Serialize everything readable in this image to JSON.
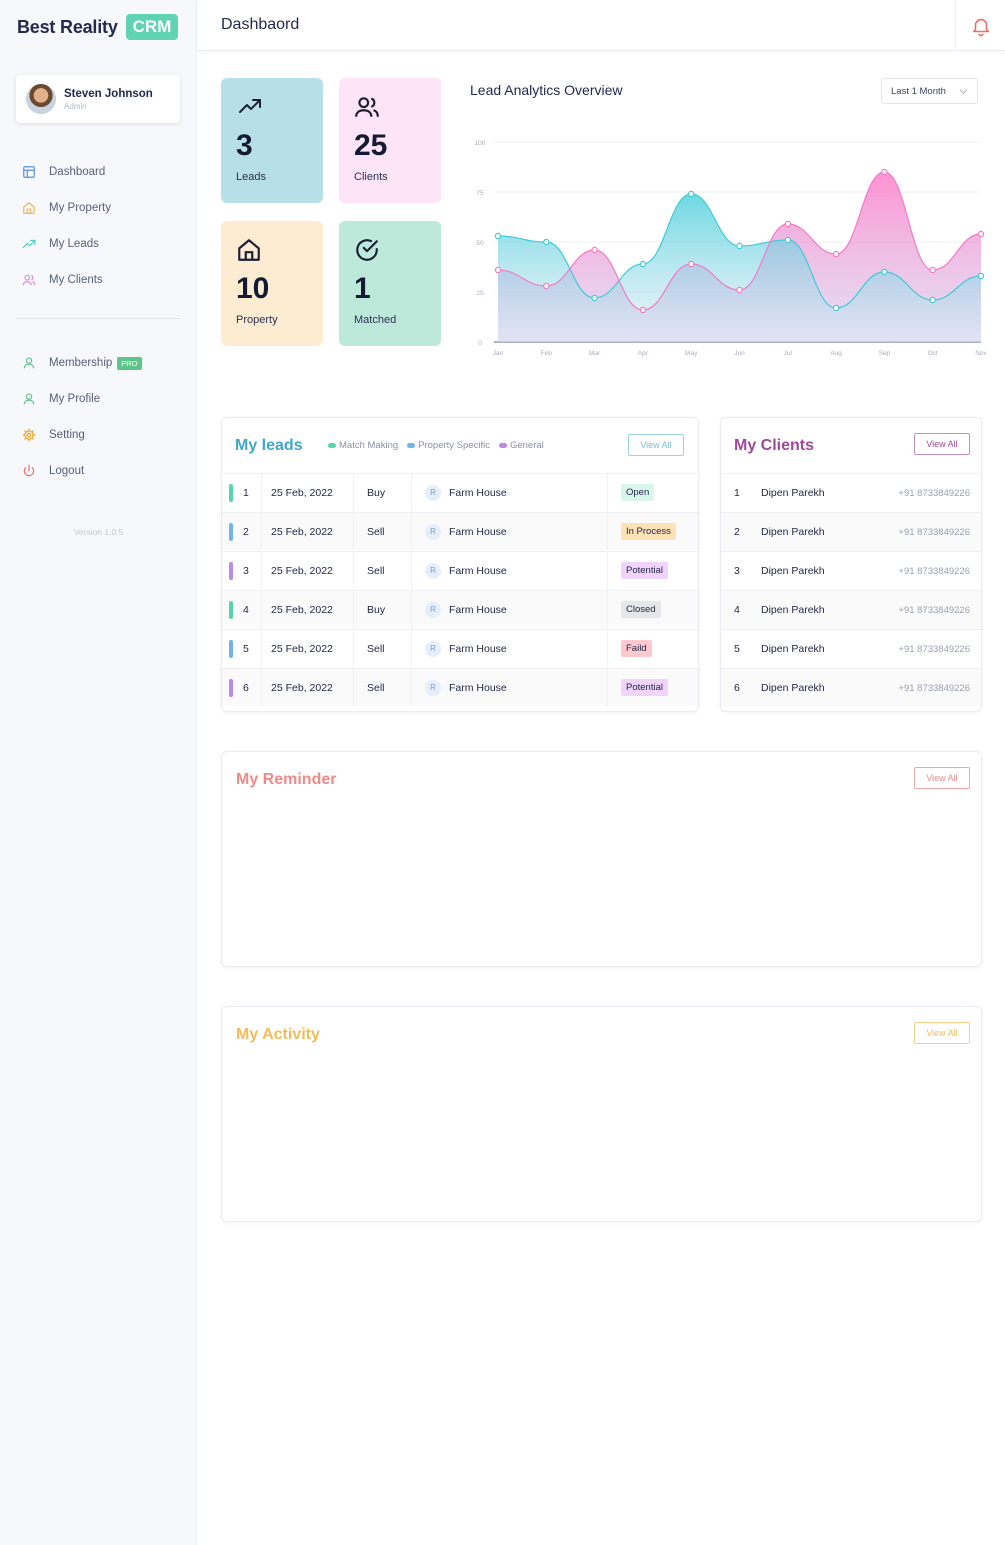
{
  "brand": {
    "name": "Best Reality",
    "badge": "CRM"
  },
  "user": {
    "name": "Steven Johnson",
    "role": "Admin"
  },
  "nav_main": [
    {
      "label": "Dashboard",
      "icon": "dashboard-icon",
      "color": "#5b8fd6"
    },
    {
      "label": "My Property",
      "icon": "home-icon",
      "color": "#f0b45b"
    },
    {
      "label": "My Leads",
      "icon": "trend-up-icon",
      "color": "#4fcfbd"
    },
    {
      "label": "My Clients",
      "icon": "users-icon",
      "color": "#e38ad9"
    }
  ],
  "nav_secondary": [
    {
      "label": "Membership",
      "icon": "user-icon",
      "color": "#5cc58a",
      "badge": "PRO"
    },
    {
      "label": "My Profile",
      "icon": "user-icon",
      "color": "#5cc58a"
    },
    {
      "label": "Setting",
      "icon": "gear-icon",
      "color": "#f0a01e"
    },
    {
      "label": "Logout",
      "icon": "power-icon",
      "color": "#ef6a6a"
    }
  ],
  "version": "Version 1.0.5",
  "header": {
    "title": "Dashbaord"
  },
  "stats": [
    {
      "value": "3",
      "label": "Leads",
      "icon": "trend-up-icon",
      "bg": "#b7dfe8"
    },
    {
      "value": "25",
      "label": "Clients",
      "icon": "users-icon",
      "bg": "#fde4f7"
    },
    {
      "value": "10",
      "label": "Property",
      "icon": "home-icon",
      "bg": "#fdebd2"
    },
    {
      "value": "1",
      "label": "Matched",
      "icon": "check-circle-icon",
      "bg": "#bde9db"
    }
  ],
  "analytics": {
    "title": "Lead Analytics Overview",
    "range": "Last 1 Month"
  },
  "chart_data": {
    "type": "area",
    "x": [
      "Jan",
      "Feb",
      "Mar",
      "Apr",
      "May",
      "Jun",
      "Jul",
      "Aug",
      "Sep",
      "Oct",
      "Nov"
    ],
    "yticks": [
      0,
      25,
      50,
      75,
      100
    ],
    "ylim": [
      0,
      100
    ],
    "grid": true,
    "series": [
      {
        "values": [
          53,
          50,
          22,
          39,
          74,
          48,
          51,
          17,
          35,
          21,
          33
        ],
        "color": "#3fcbd8"
      },
      {
        "values": [
          36,
          28,
          46,
          16,
          39,
          26,
          59,
          44,
          85,
          36,
          54
        ],
        "color": "#f47ac6"
      }
    ]
  },
  "leads": {
    "title": "My leads",
    "view_all": "View All",
    "legend": [
      {
        "label": "Match Making",
        "color": "#55d6a9"
      },
      {
        "label": "Property Specific",
        "color": "#6fb3f0"
      },
      {
        "label": "General",
        "color": "#b98ae8"
      }
    ],
    "rows": [
      {
        "num": "1",
        "date": "25 Feb, 2022",
        "type": "Buy",
        "initial": "R",
        "property": "Farm House",
        "status": "Open",
        "bar": "#55d6a9",
        "status_bg": "#d8f6ec",
        "status_fg": "#1f2544"
      },
      {
        "num": "2",
        "date": "25 Feb, 2022",
        "type": "Sell",
        "initial": "R",
        "property": "Farm House",
        "status": "In Process",
        "bar": "#6fb3f0",
        "status_bg": "#fde2b8",
        "status_fg": "#1f2544"
      },
      {
        "num": "3",
        "date": "25 Feb, 2022",
        "type": "Sell",
        "initial": "R",
        "property": "Farm House",
        "status": "Potential",
        "bar": "#b98ae8",
        "status_bg": "#f1d4fb",
        "status_fg": "#1f2544"
      },
      {
        "num": "4",
        "date": "25 Feb, 2022",
        "type": "Buy",
        "initial": "R",
        "property": "Farm House",
        "status": "Closed",
        "bar": "#55d6a9",
        "status_bg": "#e6e7ea",
        "status_fg": "#1f2544"
      },
      {
        "num": "5",
        "date": "25 Feb, 2022",
        "type": "Sell",
        "initial": "R",
        "property": "Farm House",
        "status": "Faild",
        "bar": "#6fb3f0",
        "status_bg": "#fdc9cf",
        "status_fg": "#1f2544"
      },
      {
        "num": "6",
        "date": "25 Feb, 2022",
        "type": "Sell",
        "initial": "R",
        "property": "Farm House",
        "status": "Potential",
        "bar": "#b98ae8",
        "status_bg": "#f1d4fb",
        "status_fg": "#1f2544"
      }
    ]
  },
  "clients": {
    "title": "My Clients",
    "view_all": "View All",
    "rows": [
      {
        "num": "1",
        "name": "Dipen Parekh",
        "phone": "+91 8733849226"
      },
      {
        "num": "2",
        "name": "Dipen Parekh",
        "phone": "+91 8733849226"
      },
      {
        "num": "3",
        "name": "Dipen Parekh",
        "phone": "+91 8733849226"
      },
      {
        "num": "4",
        "name": "Dipen Parekh",
        "phone": "+91 8733849226"
      },
      {
        "num": "5",
        "name": "Dipen Parekh",
        "phone": "+91 8733849226"
      },
      {
        "num": "6",
        "name": "Dipen Parekh",
        "phone": "+91 8733849226"
      }
    ]
  },
  "reminder": {
    "title": "My Reminder",
    "view_all": "View All",
    "color": "#ef8a8a"
  },
  "activity": {
    "title": "My Activity",
    "view_all": "View All",
    "color": "#f5bb5a"
  },
  "colors": {
    "leads_accent": "#3fa7c9",
    "clients_accent": "#a0489a",
    "brand_green": "#5fd3b3"
  }
}
